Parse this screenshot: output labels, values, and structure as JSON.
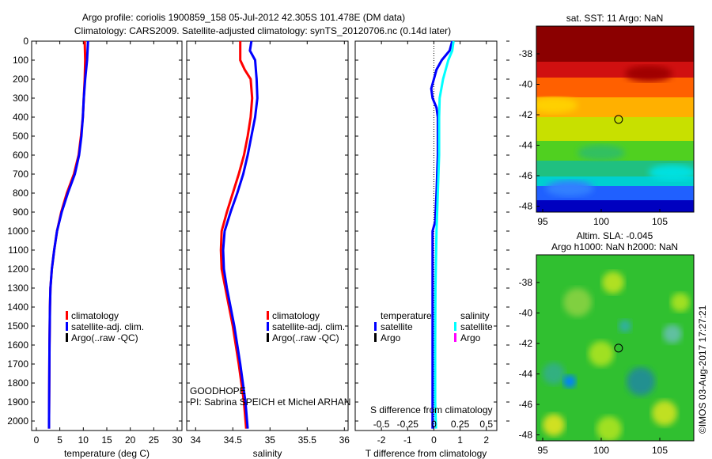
{
  "title_line1": "Argo profile: coriolis 1900859_158 05-Jul-2012 42.305S 101.478E (DM data)",
  "title_line2": "Climatology: CARS2009. Satellite-adjusted climatology: synTS_20120706.nc (0.14d later)",
  "colors": {
    "climatology": "#ff0000",
    "satellite": "#0000ff",
    "argo": "#000000",
    "sal_satellite": "#00ffff",
    "sal_argo": "#ff00ff"
  },
  "chart_data": [
    {
      "type": "line",
      "xlabel": "temperature (deg C)",
      "ylabel": "",
      "xlim": [
        -1,
        31
      ],
      "ylim": [
        2050,
        0
      ],
      "xticks": [
        0,
        5,
        10,
        15,
        20,
        25,
        30
      ],
      "yticks": [
        0,
        100,
        200,
        300,
        400,
        500,
        600,
        700,
        800,
        900,
        1000,
        1100,
        1200,
        1300,
        1400,
        1500,
        1600,
        1700,
        1800,
        1900,
        2000
      ],
      "legend": [
        "climatology",
        "satellite-adj. clim.",
        "Argo(..raw -QC)"
      ],
      "series": [
        {
          "name": "climatology",
          "color": "#ff0000",
          "depth": [
            0,
            100,
            200,
            300,
            400,
            500,
            600,
            700,
            800,
            900,
            1000,
            1100,
            1200,
            1300,
            1400,
            1600,
            1800,
            2000,
            2040
          ],
          "values": [
            10.3,
            10.4,
            10.3,
            10.1,
            9.9,
            9.5,
            9.0,
            8.0,
            6.5,
            5.3,
            4.4,
            3.8,
            3.3,
            3.0,
            2.9,
            2.8,
            2.75,
            2.7,
            2.7
          ]
        },
        {
          "name": "satellite-adj. clim.",
          "color": "#0000ff",
          "depth": [
            0,
            100,
            200,
            300,
            400,
            500,
            600,
            700,
            800,
            900,
            1000,
            1100,
            1200,
            1300,
            1400,
            1600,
            1800,
            2000,
            2040
          ],
          "values": [
            11.0,
            10.8,
            10.4,
            10.1,
            9.9,
            9.6,
            9.1,
            8.2,
            6.7,
            5.4,
            4.4,
            3.8,
            3.3,
            3.0,
            2.9,
            2.8,
            2.75,
            2.7,
            2.7
          ]
        }
      ]
    },
    {
      "type": "line",
      "xlabel": "salinity",
      "ylabel": "",
      "xlim": [
        33.88,
        36.05
      ],
      "ylim": [
        2050,
        0
      ],
      "xticks": [
        34,
        34.5,
        35,
        35.5,
        36
      ],
      "legend": [
        "climatology",
        "satellite-adj. clim.",
        "Argo(..raw -QC)"
      ],
      "annotation": [
        "GOODHOPE",
        "PI: Sabrina SPEICH et Michel ARHAN"
      ],
      "series": [
        {
          "name": "climatology",
          "color": "#ff0000",
          "depth": [
            0,
            100,
            150,
            200,
            300,
            400,
            500,
            600,
            700,
            800,
            900,
            1000,
            1100,
            1200,
            1300,
            1500,
            1700,
            1900,
            2040
          ],
          "values": [
            34.6,
            34.6,
            34.66,
            34.74,
            34.76,
            34.74,
            34.7,
            34.65,
            34.58,
            34.5,
            34.42,
            34.35,
            34.34,
            34.35,
            34.4,
            34.5,
            34.58,
            34.65,
            34.68
          ]
        },
        {
          "name": "satellite-adj. clim.",
          "color": "#0000ff",
          "depth": [
            0,
            50,
            100,
            200,
            300,
            400,
            500,
            600,
            700,
            800,
            900,
            1000,
            1100,
            1200,
            1300,
            1500,
            1700,
            1900,
            2040
          ],
          "values": [
            34.75,
            34.73,
            34.8,
            34.82,
            34.83,
            34.8,
            34.75,
            34.7,
            34.64,
            34.56,
            34.47,
            34.39,
            34.37,
            34.38,
            34.42,
            34.52,
            34.6,
            34.67,
            34.7
          ]
        }
      ]
    },
    {
      "type": "line",
      "xlabel": "T difference from climatology",
      "xlabel2": "S difference from climatology",
      "xlim": [
        -3,
        2.4
      ],
      "ylim": [
        2050,
        0
      ],
      "xticks": [
        -2,
        -1,
        0,
        1,
        2
      ],
      "xticks2": [
        -0.5,
        -0.25,
        0,
        0.25,
        0.5
      ],
      "legend_titles": [
        "temperature",
        "salinity"
      ],
      "legend": [
        "satellite",
        "Argo",
        "satellite",
        "Argo"
      ],
      "series": [
        {
          "name": "temperature satellite",
          "color": "#0000ff",
          "depth": [
            0,
            50,
            100,
            150,
            200,
            250,
            300,
            350,
            400,
            600,
            800,
            950,
            1000,
            1300,
            1600,
            2040
          ],
          "values": [
            0.7,
            0.6,
            0.3,
            0.1,
            0.0,
            -0.1,
            -0.05,
            0.1,
            0.15,
            0.15,
            0.1,
            0.05,
            -0.05,
            -0.05,
            -0.05,
            -0.05
          ]
        },
        {
          "name": "salinity satellite",
          "color": "#00ffff",
          "depth": [
            0,
            50,
            100,
            150,
            200,
            300,
            400,
            600,
            800,
            1000,
            1300,
            1600,
            1900,
            2040
          ],
          "values": [
            0.75,
            0.7,
            0.55,
            0.45,
            0.35,
            0.22,
            0.2,
            0.2,
            0.15,
            0.1,
            0.06,
            0.05,
            0.05,
            0.08
          ]
        }
      ]
    }
  ],
  "map1": {
    "title": "sat. SST: 11 Argo: NaN",
    "lat_ticks": [
      "-38",
      "-40",
      "-42",
      "-44",
      "-46",
      "-48"
    ],
    "lon_ticks": [
      "95",
      "100",
      "105"
    ]
  },
  "map2": {
    "title1": "Altim. SLA: -0.045",
    "title2": "Argo h1000: NaN h2000: NaN",
    "lat_ticks": [
      "-38",
      "-40",
      "-42",
      "-44",
      "-46",
      "-48"
    ],
    "lon_ticks": [
      "95",
      "100",
      "105"
    ]
  },
  "credit": "©IMOS 03-Aug-2017 17:27:21"
}
